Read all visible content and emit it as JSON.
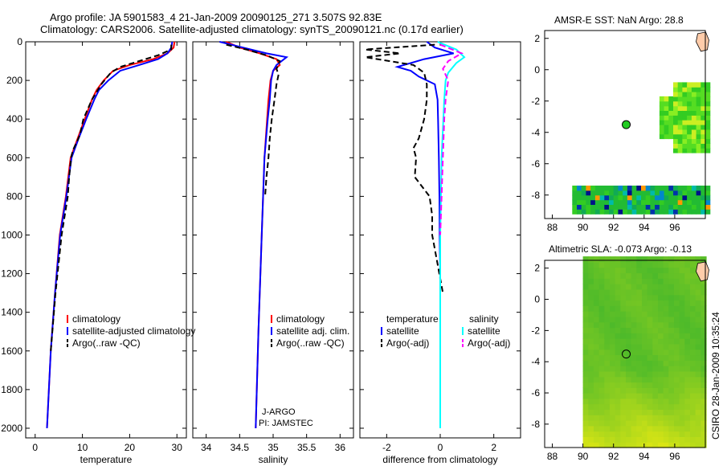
{
  "titles": {
    "line1": "Argo profile: JA 5901583_4 21-Jan-2009 20090125_271 3.507S 92.83E",
    "line2": "Climatology: CARS2006. Satellite-adjusted climatology: synTS_20090121.nc (0.17d earlier)",
    "sst": "AMSR-E SST: NaN Argo: 28.8",
    "sla": "Altimetric SLA: -0.073 Argo: -0.13",
    "footer": "CSIRO 28-Jan-2009 10:35:24"
  },
  "colors": {
    "climatology": "#ff0000",
    "satellite": "#0000ff",
    "argo": "#000000",
    "cyan": "#00ffff",
    "magenta": "#ff00ff",
    "land": "#ffccaa",
    "sst_field": "#22bb33"
  },
  "chart_data": [
    {
      "type": "line",
      "id": "temperature",
      "xlabel": "temperature",
      "xlim": [
        -2,
        32
      ],
      "xticks": [
        0,
        10,
        20,
        30
      ],
      "ylim": [
        2050,
        0
      ],
      "yticks": [
        0,
        200,
        400,
        600,
        800,
        1000,
        1200,
        1400,
        1600,
        1800,
        2000
      ],
      "legend": [
        "climatology",
        "satellite-adjusted climatology",
        "Argo(..raw -QC)"
      ],
      "series": [
        {
          "name": "climatology",
          "color": "#ff0000",
          "dash": "",
          "x": [
            29.5,
            29.3,
            28.0,
            25.0,
            20.0,
            16.5,
            14.5,
            13.0,
            12.0,
            10.5,
            9.0,
            7.5,
            6.5,
            5.2,
            4.2,
            3.3,
            2.5
          ],
          "y": [
            0,
            30,
            60,
            90,
            120,
            150,
            200,
            250,
            300,
            400,
            500,
            600,
            800,
            1000,
            1300,
            1600,
            2000
          ]
        },
        {
          "name": "satellite-adjusted climatology",
          "color": "#0000ff",
          "dash": "",
          "x": [
            29.0,
            28.8,
            28.0,
            26.0,
            22.0,
            18.0,
            15.5,
            13.5,
            12.5,
            10.8,
            9.2,
            7.7,
            6.6,
            5.3,
            4.2,
            3.3,
            2.5
          ],
          "y": [
            0,
            30,
            60,
            90,
            120,
            150,
            200,
            250,
            300,
            400,
            500,
            600,
            800,
            1000,
            1300,
            1600,
            2000
          ]
        },
        {
          "name": "Argo(..raw -QC)",
          "color": "#000000",
          "dash": "7,4",
          "x": [
            28.8,
            28.8,
            26.0,
            22.0,
            18.0,
            16.0,
            14.0,
            12.0,
            10.2,
            9.5,
            8.8,
            8.0,
            7.6,
            7.2,
            6.9,
            5.6,
            4.3,
            3.3
          ],
          "y": [
            15,
            40,
            70,
            100,
            130,
            160,
            220,
            300,
            400,
            480,
            520,
            560,
            600,
            700,
            800,
            1000,
            1300,
            1600
          ]
        }
      ]
    },
    {
      "type": "line",
      "id": "salinity",
      "xlabel": "salinity",
      "xlim": [
        33.8,
        36.2
      ],
      "xticks": [
        34,
        34.5,
        35,
        35.5,
        36
      ],
      "ylim": [
        2050,
        0
      ],
      "legend": [
        "climatology",
        "satellite adj. clim.",
        "Argo(..raw -QC)"
      ],
      "annotations": [
        "J-ARGO",
        "PI: JAMSTEC"
      ],
      "series": [
        {
          "name": "climatology",
          "color": "#ff0000",
          "dash": "",
          "x": [
            34.3,
            34.5,
            34.8,
            35.05,
            35.1,
            35.0,
            34.96,
            34.93,
            34.91,
            34.87,
            34.83,
            34.78,
            34.74
          ],
          "y": [
            0,
            30,
            60,
            90,
            120,
            150,
            200,
            300,
            400,
            600,
            1000,
            1500,
            2000
          ]
        },
        {
          "name": "satellite adj. clim.",
          "color": "#0000ff",
          "dash": "",
          "x": [
            34.2,
            34.55,
            34.9,
            35.2,
            35.05,
            35.0,
            34.97,
            34.95,
            34.92,
            34.87,
            34.83,
            34.78,
            34.74
          ],
          "y": [
            0,
            30,
            60,
            80,
            120,
            150,
            200,
            300,
            400,
            600,
            1000,
            1500,
            2000
          ]
        },
        {
          "name": "Argo(..raw -QC)",
          "color": "#000000",
          "dash": "7,4",
          "x": [
            34.3,
            34.6,
            34.9,
            35.1,
            35.05,
            35.08,
            35.05,
            35.02,
            34.98,
            34.95,
            34.93,
            34.9,
            34.88
          ],
          "y": [
            15,
            40,
            70,
            100,
            140,
            170,
            220,
            300,
            400,
            500,
            600,
            700,
            800
          ]
        }
      ]
    },
    {
      "type": "line",
      "id": "difference",
      "xlabel": "difference from climatology",
      "xlim": [
        -3,
        3
      ],
      "xticks": [
        -2,
        0,
        2
      ],
      "ylim": [
        2050,
        0
      ],
      "legend_title_left": "temperature",
      "legend_title_right": "salinity",
      "legend": [
        "satellite",
        "Argo(-adj)",
        "satellite",
        "Argo(-adj)"
      ],
      "series": [
        {
          "name": "temperature satellite",
          "color": "#0000ff",
          "dash": "",
          "x": [
            -0.5,
            -0.2,
            0.5,
            -0.6,
            -1.6,
            -1.1,
            -0.8,
            -0.2,
            -0.1,
            -0.08,
            -0.05,
            -0.03,
            -0.02,
            0.0,
            0.0
          ],
          "y": [
            0,
            30,
            60,
            90,
            130,
            150,
            180,
            220,
            300,
            400,
            600,
            800,
            1000,
            1200,
            2000
          ]
        },
        {
          "name": "temperature Argo(-adj)",
          "color": "#000000",
          "dash": "7,4",
          "x": [
            -0.2,
            -2.8,
            -1.5,
            -2.8,
            -1.0,
            -0.6,
            -0.5,
            -0.5,
            -0.6,
            -0.8,
            -1.0,
            -0.9,
            -0.95,
            -0.4,
            -0.3,
            -0.3,
            -0.1,
            0.1
          ],
          "y": [
            15,
            40,
            60,
            80,
            120,
            160,
            220,
            300,
            400,
            500,
            550,
            600,
            700,
            800,
            900,
            1000,
            1150,
            1300
          ]
        },
        {
          "name": "salinity satellite",
          "color": "#00ffff",
          "dash": "",
          "x": [
            -0.1,
            0.6,
            0.9,
            0.6,
            0.3,
            0.2,
            0.15,
            0.05,
            0.0,
            0.0
          ],
          "y": [
            0,
            40,
            80,
            110,
            160,
            200,
            300,
            600,
            1000,
            2000
          ]
        },
        {
          "name": "salinity Argo(-adj)",
          "color": "#ff00ff",
          "dash": "7,4",
          "x": [
            0.0,
            0.8,
            0.3,
            0.1,
            0.3,
            0.2,
            0.15,
            0.1,
            0.05,
            0.0
          ],
          "y": [
            15,
            60,
            100,
            140,
            200,
            300,
            400,
            600,
            800,
            1000
          ]
        }
      ]
    },
    {
      "type": "heatmap",
      "id": "sst-map",
      "title": "AMSR-E SST: NaN Argo: 28.8",
      "xlim": [
        87.5,
        98
      ],
      "ylim": [
        -9.5,
        2.5
      ],
      "xticks": [
        88,
        90,
        92,
        94,
        96
      ],
      "yticks": [
        -8,
        -6,
        -4,
        -2,
        0,
        2
      ],
      "argo_point": [
        92.83,
        -3.507
      ]
    },
    {
      "type": "heatmap",
      "id": "sla-map",
      "title": "Altimetric SLA: -0.073 Argo: -0.13",
      "xlim": [
        87.5,
        98
      ],
      "ylim": [
        -9.5,
        2.5
      ],
      "xticks": [
        88,
        90,
        92,
        94,
        96
      ],
      "yticks": [
        -8,
        -6,
        -4,
        -2,
        0,
        2
      ],
      "argo_point": [
        92.83,
        -3.507
      ]
    }
  ]
}
